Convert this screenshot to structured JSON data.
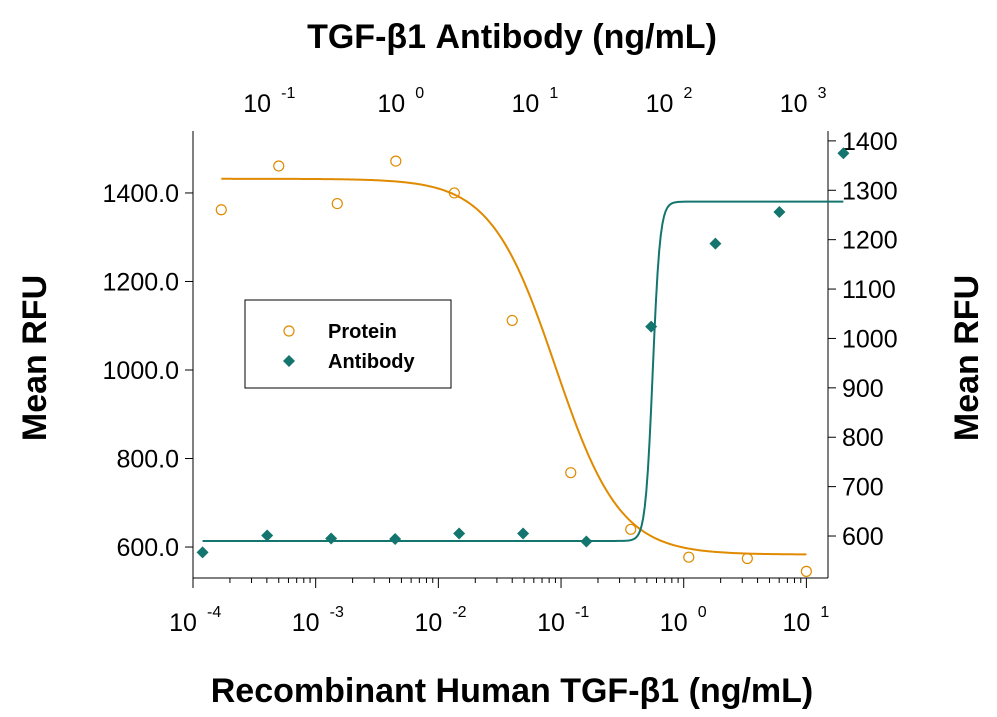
{
  "chart_data": {
    "type": "scatter",
    "title": "TGF-β1 Antibody (ng/mL)",
    "xlabel": "Recombinant Human TGF-β1 (ng/mL)",
    "ylabel": "Mean RFU",
    "ylabel_right": "Mean RFU",
    "x_scale": "log",
    "x_top_scale": "log",
    "xlim": [
      0.0001,
      15
    ],
    "xlim_top": [
      0.028,
      1520
    ],
    "ylim": [
      530,
      1540
    ],
    "ylim_right": [
      515,
      1420
    ],
    "x_ticks": [
      {
        "value": 0.0001,
        "base": "10",
        "exp": "-4"
      },
      {
        "value": 0.001,
        "base": "10",
        "exp": "-3"
      },
      {
        "value": 0.01,
        "base": "10",
        "exp": "-2"
      },
      {
        "value": 0.1,
        "base": "10",
        "exp": "-1"
      },
      {
        "value": 1,
        "base": "10",
        "exp": "0"
      },
      {
        "value": 10,
        "base": "10",
        "exp": "1"
      }
    ],
    "x_top_ticks": [
      {
        "value": 0.1,
        "base": "10",
        "exp": "-1"
      },
      {
        "value": 1,
        "base": "10",
        "exp": "0"
      },
      {
        "value": 10,
        "base": "10",
        "exp": "1"
      },
      {
        "value": 100,
        "base": "10",
        "exp": "2"
      },
      {
        "value": 1000,
        "base": "10",
        "exp": "3"
      }
    ],
    "y_ticks": [
      {
        "value": 600,
        "label": "600.0"
      },
      {
        "value": 800,
        "label": "800.0"
      },
      {
        "value": 1000,
        "label": "1000.0"
      },
      {
        "value": 1200,
        "label": "1200.0"
      },
      {
        "value": 1400,
        "label": "1400.0"
      }
    ],
    "y_right_ticks": [
      {
        "value": 600,
        "label": "600"
      },
      {
        "value": 700,
        "label": "700"
      },
      {
        "value": 800,
        "label": "800"
      },
      {
        "value": 900,
        "label": "900"
      },
      {
        "value": 1000,
        "label": "1000"
      },
      {
        "value": 1100,
        "label": "1100"
      },
      {
        "value": 1200,
        "label": "1200"
      },
      {
        "value": 1300,
        "label": "1300"
      },
      {
        "value": 1400,
        "label": "1400"
      }
    ],
    "grid": false,
    "legend_position": "center-left",
    "series": [
      {
        "name": "Protein",
        "axis": "bottom-left",
        "marker": "open-circle",
        "color": "#E08A00",
        "x": [
          0.00017,
          0.0005,
          0.0015,
          0.0045,
          0.0135,
          0.04,
          0.12,
          0.37,
          1.1,
          3.3,
          10
        ],
        "y": [
          1362,
          1461,
          1376,
          1472,
          1400,
          1112,
          768,
          640,
          577,
          574,
          545
        ],
        "fit": {
          "top": 1432,
          "bottom": 583,
          "ec50": 0.09,
          "hill": 1.65
        }
      },
      {
        "name": "Antibody",
        "axis": "top-right",
        "marker": "filled-diamond",
        "color": "#13756E",
        "x": [
          0.033,
          0.1,
          0.3,
          0.9,
          2.7,
          8.1,
          24,
          73,
          220,
          660,
          1980
        ],
        "y": [
          567,
          601,
          595,
          594,
          605,
          605,
          589,
          1024,
          1192,
          1256,
          1375
        ],
        "fit": {
          "top": 1277,
          "bottom": 590,
          "ec50": 75,
          "hill": 16
        }
      }
    ]
  }
}
